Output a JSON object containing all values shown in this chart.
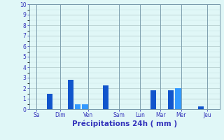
{
  "bars": [
    {
      "label": "Dim",
      "x": 1,
      "height": 1.5,
      "color": "#1155cc"
    },
    {
      "label": "Ven_1",
      "x": 2,
      "height": 2.8,
      "color": "#1155cc"
    },
    {
      "label": "Ven_2",
      "x": 2.35,
      "height": 0.45,
      "color": "#3399ff"
    },
    {
      "label": "Ven_3",
      "x": 2.7,
      "height": 0.45,
      "color": "#3399ff"
    },
    {
      "label": "Sam",
      "x": 3.7,
      "height": 2.3,
      "color": "#1155cc"
    },
    {
      "label": "Mar",
      "x": 6.0,
      "height": 1.8,
      "color": "#1155cc"
    },
    {
      "label": "Mer_1",
      "x": 6.85,
      "height": 1.8,
      "color": "#1155cc"
    },
    {
      "label": "Mer_2",
      "x": 7.2,
      "height": 2.0,
      "color": "#3399ff"
    },
    {
      "label": "Jeu",
      "x": 8.3,
      "height": 0.3,
      "color": "#1155cc"
    }
  ],
  "bar_width": 0.28,
  "xtick_positions": [
    0.35,
    1.5,
    2.85,
    4.35,
    5.35,
    6.35,
    7.35,
    8.6
  ],
  "xtick_labels": [
    "Sa",
    "Dim",
    "Ven",
    "Sam",
    "Lun",
    "Mar",
    "Mer",
    "Jeu"
  ],
  "xlabel": "Précipitations 24h ( mm )",
  "ylim": [
    0,
    10
  ],
  "yticks": [
    0,
    1,
    2,
    3,
    4,
    5,
    6,
    7,
    8,
    9,
    10
  ],
  "background_color": "#e0f7f7",
  "grid_color": "#b0c8c8",
  "tick_color": "#3333bb",
  "label_color": "#3333bb",
  "xlim": [
    0,
    9.2
  ]
}
